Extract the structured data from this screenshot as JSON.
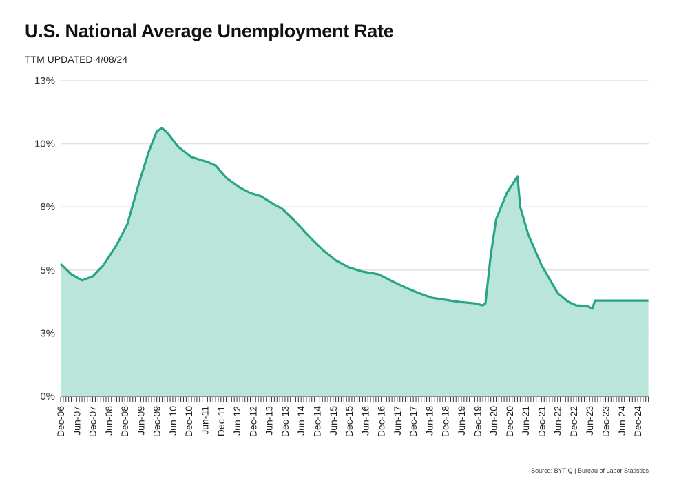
{
  "chart_data": {
    "type": "area",
    "title": "U.S. National Average Unemployment Rate",
    "subtitle": "TTM  UPDATED 4/08/24",
    "source": "Source: BYFIQ | Bureau of Labor Statistics",
    "xlabel": "",
    "ylabel": "",
    "ylim": [
      0,
      12.5
    ],
    "y_ticks": [
      0,
      2.5,
      5,
      7.5,
      10,
      12.5
    ],
    "y_tick_labels": [
      "0%",
      "3%",
      "5%",
      "8%",
      "10%",
      "13%"
    ],
    "grid": true,
    "x_start": "Dec-06",
    "x_months_total": 220,
    "x_tick_labels": [
      "Dec-06",
      "Jun-07",
      "Dec-07",
      "Jun-08",
      "Dec-08",
      "Jun-09",
      "Dec-09",
      "Jun-10",
      "Dec-10",
      "Jun-11",
      "Dec-11",
      "Jun-12",
      "Dec-12",
      "Jun-13",
      "Dec-13",
      "Jun-14",
      "Dec-14",
      "Jun-15",
      "Dec-15",
      "Jun-16",
      "Dec-16",
      "Jun-17",
      "Dec-17",
      "Jun-18",
      "Dec-18",
      "Jun-19",
      "Dec-19",
      "Jun-20",
      "Dec-20",
      "Jun-21",
      "Dec-21",
      "Jun-22",
      "Dec-22",
      "Jun-23",
      "Dec-23",
      "Jun-24",
      "Dec-24"
    ],
    "series": [
      {
        "name": "Unemployment Rate",
        "color": "#27a585",
        "fill": "#b9e5da",
        "points_month_index": [
          0,
          4,
          8,
          12,
          16,
          21,
          25,
          29,
          33,
          36,
          38,
          40,
          44,
          49,
          55,
          58,
          62,
          67,
          71,
          75,
          80,
          83,
          88,
          93,
          98,
          103,
          108,
          113,
          119,
          124,
          129,
          134,
          139,
          144,
          149,
          155,
          158,
          159,
          161,
          163,
          167,
          171,
          172,
          175,
          180,
          186,
          190,
          193,
          197,
          199,
          200,
          220
        ],
        "values": [
          5.24,
          4.83,
          4.59,
          4.75,
          5.19,
          6.0,
          6.82,
          8.32,
          9.69,
          10.5,
          10.62,
          10.43,
          9.88,
          9.47,
          9.28,
          9.14,
          8.65,
          8.27,
          8.05,
          7.92,
          7.59,
          7.42,
          6.91,
          6.33,
          5.81,
          5.38,
          5.1,
          4.94,
          4.83,
          4.56,
          4.31,
          4.09,
          3.9,
          3.82,
          3.74,
          3.68,
          3.6,
          3.68,
          5.6,
          7.01,
          8.05,
          8.71,
          7.5,
          6.41,
          5.19,
          4.09,
          3.74,
          3.6,
          3.58,
          3.47,
          3.79,
          3.79
        ]
      }
    ]
  }
}
